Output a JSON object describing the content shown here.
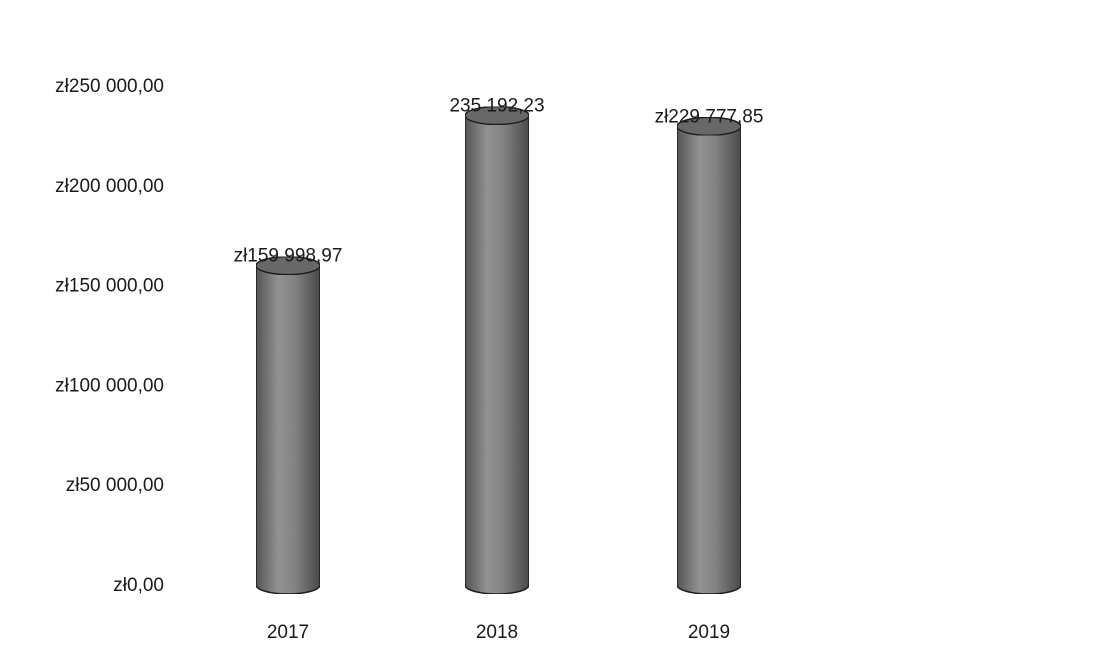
{
  "chart_data": {
    "type": "bar",
    "style": "3d-cylinder",
    "categories": [
      "2017",
      "2018",
      "2019"
    ],
    "values": [
      159998.97,
      235192.23,
      229777.85
    ],
    "data_labels": [
      "zł159 998,97",
      "235 192,23",
      "zł229 777,85"
    ],
    "y_ticks": [
      "zł0,00",
      "zł50 000,00",
      "zł100 000,00",
      "zł150 000,00",
      "zł200 000,00",
      "zł250 000,00"
    ],
    "y_tick_values": [
      0,
      50000,
      100000,
      150000,
      200000,
      250000
    ],
    "ylim": [
      0,
      250000
    ],
    "grid": false,
    "legend": "none",
    "colors": {
      "bar": "#8c8c8c",
      "bar_dark": "#5a5a5a",
      "bar_light": "#bdbdbd",
      "top": "#6e6e6e"
    }
  }
}
